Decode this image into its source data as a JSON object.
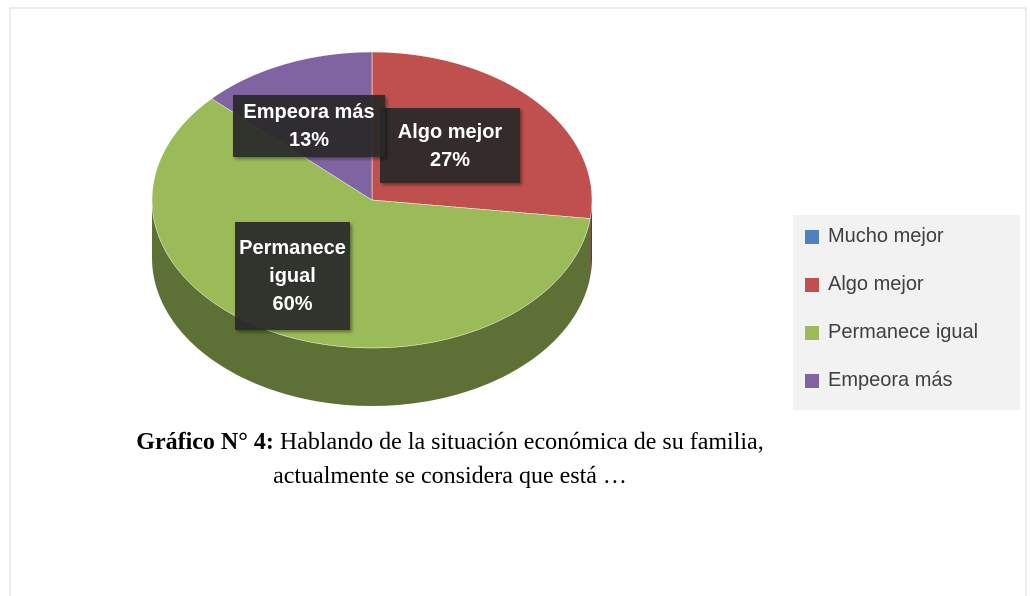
{
  "chart_data": {
    "type": "pie",
    "categories": [
      "Mucho mejor",
      "Algo mejor",
      "Permanece igual",
      "Empeora más"
    ],
    "values": [
      0,
      27,
      60,
      13
    ],
    "value_labels": [
      null,
      "27%",
      "60%",
      "13%"
    ],
    "colors": [
      "#4f81bd",
      "#c0504d",
      "#9bbb59",
      "#8064a2"
    ],
    "legend": "right",
    "caption_label": "Gráfico N° 4:",
    "caption": "Hablando de la situación económica de su familia, actualmente se considera que está …"
  }
}
